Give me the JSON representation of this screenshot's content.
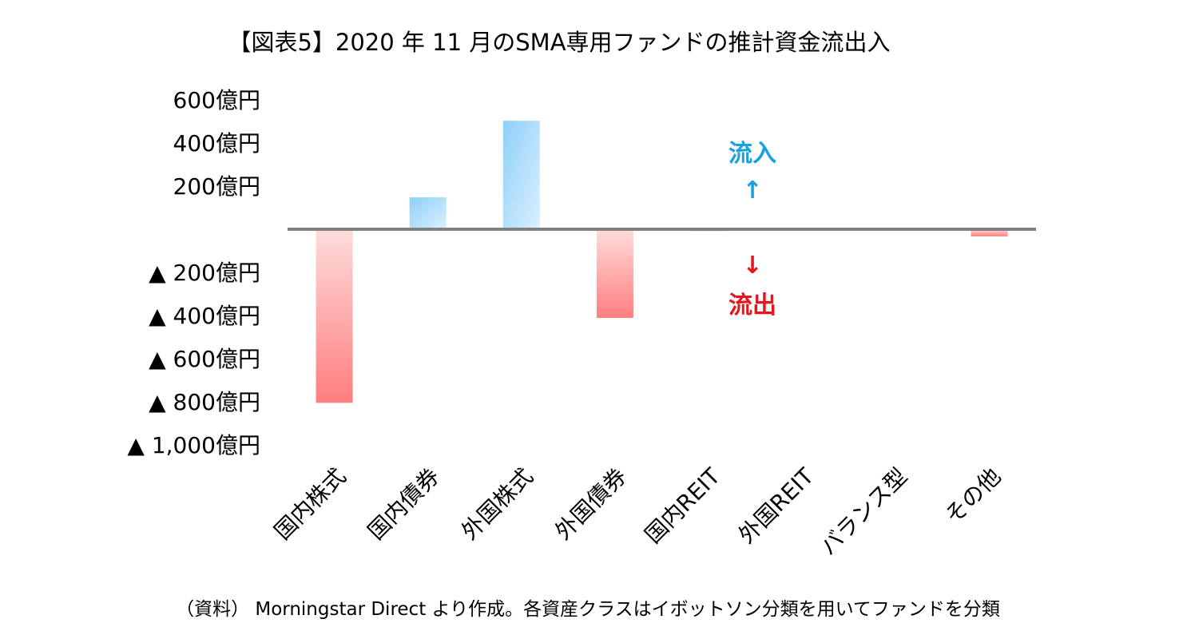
{
  "chart_data": {
    "type": "bar",
    "title": "【図表5】2020 年 11 月のSMA専用ファンドの推計資金流出入",
    "categories": [
      "国内株式",
      "国内債券",
      "外国株式",
      "外国債券",
      "国内REIT",
      "外国REIT",
      "バランス型",
      "その他"
    ],
    "values": [
      -805,
      148,
      503,
      -411,
      -8,
      0,
      4,
      -33
    ],
    "unit": "億円",
    "ylim": [
      -1000,
      600
    ],
    "yticks": [
      600,
      400,
      200,
      -200,
      -400,
      -600,
      -800,
      -1000
    ],
    "ytick_labels": [
      "600億円",
      "400億円",
      "200億円",
      "▲ 200億円",
      "▲ 400億円",
      "▲ 600億円",
      "▲ 800億円",
      "▲ 1,000億円"
    ],
    "grid": false,
    "annotations": {
      "inflow_label": "流入",
      "inflow_arrow": "↑",
      "outflow_label": "流出",
      "outflow_arrow": "↓"
    },
    "colors": {
      "positive": "#8dd0f8",
      "negative": "#fe7e7e",
      "zero_line": "#808080",
      "inflow_text": "#1aa0e0",
      "outflow_text": "#e8141e"
    },
    "source_note": "（資料） Morningstar Direct より作成。各資産クラスはイボットソン分類を用いてファンドを分類"
  }
}
